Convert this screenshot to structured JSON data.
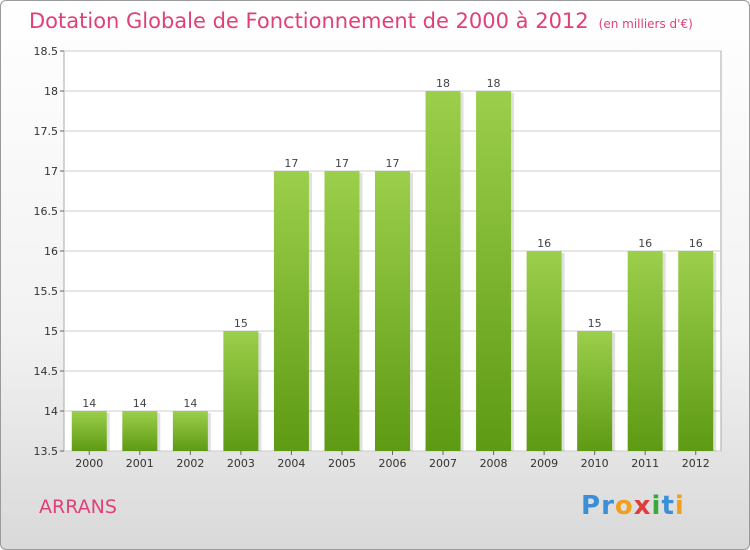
{
  "chart_data": {
    "type": "bar",
    "title": "Dotation Globale de Fonctionnement de 2000 à 2012",
    "subtitle": "(en milliers d'€)",
    "categories": [
      "2000",
      "2001",
      "2002",
      "2003",
      "2004",
      "2005",
      "2006",
      "2007",
      "2008",
      "2009",
      "2010",
      "2011",
      "2012"
    ],
    "values": [
      14,
      14,
      14,
      15,
      17,
      17,
      17,
      18,
      18,
      16,
      15,
      16,
      16
    ],
    "ylim": [
      13.5,
      18.5
    ],
    "yticks": [
      "13.5",
      "14",
      "14.5",
      "15",
      "15.5",
      "16",
      "16.5",
      "17",
      "17.5",
      "18",
      "18.5"
    ],
    "grid": true,
    "colors": {
      "bar_top": "#9ccf4b",
      "bar_bottom": "#5e9a14",
      "grid": "#cccccc"
    }
  },
  "footer": {
    "commune": "ARRANS",
    "brand_letters": [
      {
        "ch": "P",
        "color": "#3b8fd6"
      },
      {
        "ch": "r",
        "color": "#3b8fd6"
      },
      {
        "ch": "o",
        "color": "#f0a020"
      },
      {
        "ch": "x",
        "color": "#e03c3c"
      },
      {
        "ch": "i",
        "color": "#3aa83a"
      },
      {
        "ch": "t",
        "color": "#3b8fd6"
      },
      {
        "ch": "i",
        "color": "#f0a020"
      }
    ]
  }
}
